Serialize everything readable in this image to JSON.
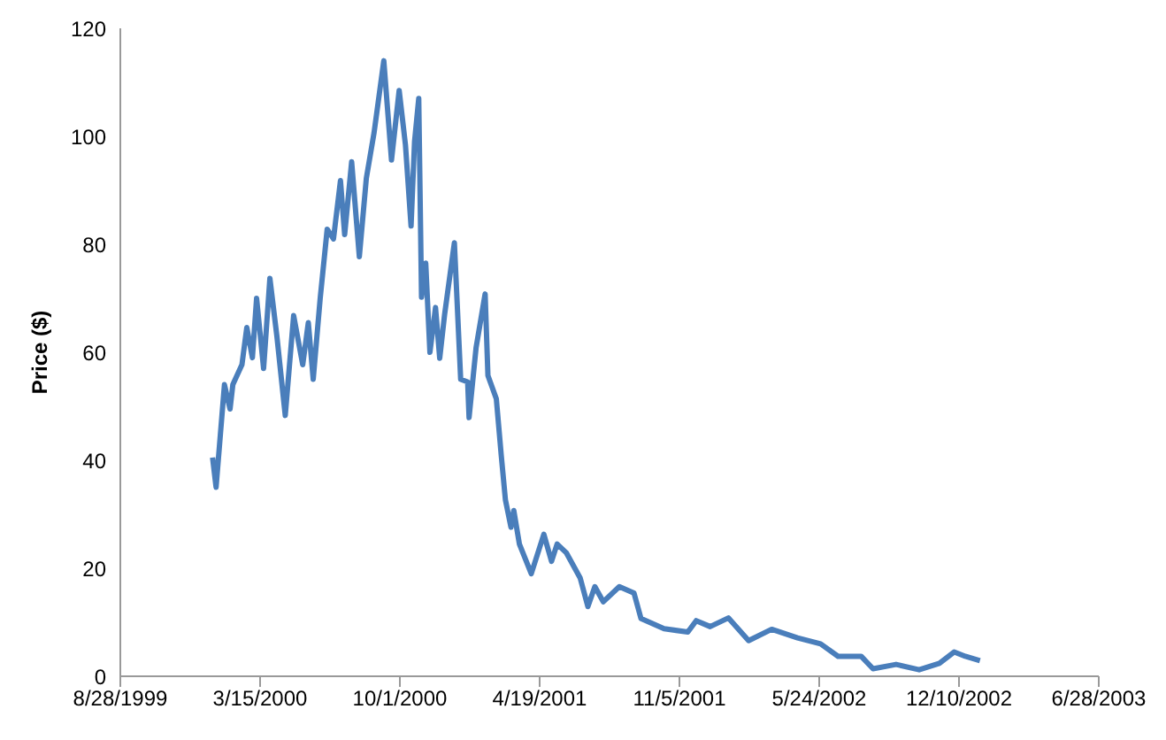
{
  "chart_data": {
    "type": "line",
    "ylabel": "Price ($)",
    "grid": false,
    "legend": false,
    "marker": "none",
    "line_style": "solid",
    "xlim": [
      "1999-08-28",
      "2003-06-28"
    ],
    "xticks": [
      {
        "value": "1999-08-28",
        "label": "8/28/1999"
      },
      {
        "value": "2000-03-15",
        "label": "3/15/2000"
      },
      {
        "value": "2000-10-01",
        "label": "10/1/2000"
      },
      {
        "value": "2001-04-19",
        "label": "4/19/2001"
      },
      {
        "value": "2001-11-05",
        "label": "11/5/2001"
      },
      {
        "value": "2002-05-24",
        "label": "5/24/2002"
      },
      {
        "value": "2002-12-10",
        "label": "12/10/2002"
      },
      {
        "value": "2003-06-28",
        "label": "6/28/2003"
      }
    ],
    "ylim": [
      0,
      120
    ],
    "yticks": [
      0,
      20,
      40,
      60,
      80,
      100,
      120
    ],
    "x": [
      "2000-01-07",
      "2000-01-12",
      "2000-01-24",
      "2000-02-01",
      "2000-02-05",
      "2000-02-18",
      "2000-02-25",
      "2000-03-04",
      "2000-03-10",
      "2000-03-20",
      "2000-03-29",
      "2000-04-08",
      "2000-04-20",
      "2000-05-02",
      "2000-05-15",
      "2000-05-23",
      "2000-05-30",
      "2000-06-09",
      "2000-06-19",
      "2000-06-28",
      "2000-07-08",
      "2000-07-14",
      "2000-07-24",
      "2000-08-04",
      "2000-08-14",
      "2000-08-25",
      "2000-09-08",
      "2000-09-19",
      "2000-09-30",
      "2000-10-09",
      "2000-10-17",
      "2000-10-22",
      "2000-10-28",
      "2000-11-01",
      "2000-11-07",
      "2000-11-13",
      "2000-11-21",
      "2000-11-27",
      "2000-12-04",
      "2000-12-18",
      "2000-12-27",
      "2001-01-06",
      "2001-01-08",
      "2001-01-18",
      "2001-01-31",
      "2001-02-04",
      "2001-02-16",
      "2001-02-23",
      "2001-03-01",
      "2001-03-09",
      "2001-03-13",
      "2001-03-21",
      "2001-04-07",
      "2001-04-25",
      "2001-05-06",
      "2001-05-14",
      "2001-05-27",
      "2001-06-16",
      "2001-06-27",
      "2001-07-07",
      "2001-07-19",
      "2001-08-11",
      "2001-09-01",
      "2001-09-11",
      "2001-10-14",
      "2001-11-17",
      "2001-11-29",
      "2001-12-19",
      "2002-01-14",
      "2002-02-12",
      "2002-03-17",
      "2002-04-23",
      "2002-05-26",
      "2002-06-20",
      "2002-07-23",
      "2002-08-09",
      "2002-09-11",
      "2002-10-14",
      "2002-11-12",
      "2002-12-03",
      "2002-12-19",
      "2003-01-09"
    ],
    "series": [
      {
        "color": "#4a7ebb",
        "values": [
          40.5,
          35,
          54,
          49.5,
          54,
          57.7,
          64.6,
          59,
          70,
          57,
          73.7,
          63,
          48.3,
          66.8,
          57.7,
          65.5,
          55,
          70,
          82.8,
          81,
          91.8,
          81.8,
          95.3,
          77.7,
          92.2,
          100.6,
          114,
          95.6,
          108.5,
          98.4,
          83.4,
          99,
          107,
          70.2,
          76.5,
          60,
          68.3,
          58.9,
          67,
          80.3,
          55,
          54.5,
          47.9,
          60.8,
          70.8,
          55.7,
          51.4,
          41,
          32.7,
          27.6,
          30.7,
          24.5,
          19,
          26.3,
          21.3,
          24.5,
          22.9,
          18.2,
          12.9,
          16.6,
          13.8,
          16.6,
          15.4,
          10.7,
          8.8,
          8.2,
          10.3,
          9.2,
          10.8,
          6.6,
          8.7,
          7.1,
          6,
          3.7,
          3.7,
          1.4,
          2.2,
          1.2,
          2.4,
          4.5,
          3.7,
          2.9
        ]
      }
    ]
  }
}
